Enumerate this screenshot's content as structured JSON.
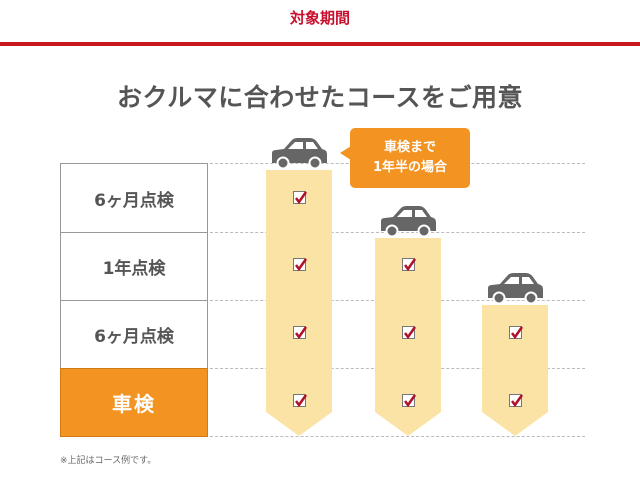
{
  "header": {
    "title": "対象期間"
  },
  "main": {
    "title": "おクルマに合わせたコースをご用意",
    "rows": [
      {
        "label": "6ヶ月点検"
      },
      {
        "label": "1年点検"
      },
      {
        "label": "6ヶ月点検"
      },
      {
        "label": "車検",
        "highlight": true
      }
    ],
    "callout": {
      "line1": "車検まで",
      "line2": "1年半の場合"
    },
    "columns": [
      {
        "checked_rows": [
          1,
          2,
          3,
          4
        ]
      },
      {
        "checked_rows": [
          2,
          3,
          4
        ]
      },
      {
        "checked_rows": [
          3,
          4
        ]
      }
    ],
    "footnote": "※上記はコース例です。"
  },
  "colors": {
    "accent_red": "#c8161e",
    "orange": "#f39322",
    "column_fill": "#fbe3a6",
    "check_mark": "#b0102a",
    "car": "#666666"
  },
  "icons": {
    "car": "car-icon",
    "check": "checkbox-checked-icon"
  }
}
